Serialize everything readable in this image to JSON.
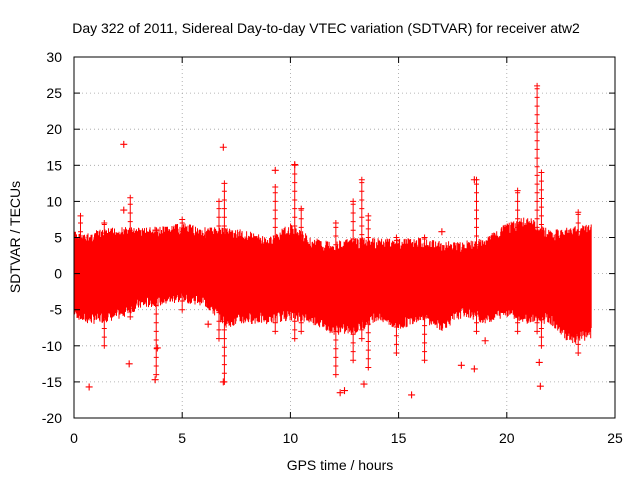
{
  "chart_data": {
    "type": "scatter",
    "title": "Day 322 of 2011, Sidereal Day-to-day VTEC variation (SDTVAR) for receiver atw2",
    "xlabel": "GPS time / hours",
    "ylabel": "SDTVAR / TECUs",
    "xlim": [
      0,
      25
    ],
    "ylim": [
      -20,
      30
    ],
    "xticks": [
      0,
      5,
      10,
      15,
      20,
      25
    ],
    "yticks": [
      -20,
      -15,
      -10,
      -5,
      0,
      5,
      10,
      15,
      20,
      25,
      30
    ],
    "grid": true,
    "marker": "plus",
    "color": "#ff0000",
    "x_data_range": [
      0,
      23.9
    ],
    "dense_band_note": "dense band mostly between -7 and 7 TECU",
    "envelope": [
      {
        "x": 0.0,
        "low": -6,
        "high": 6
      },
      {
        "x": 0.5,
        "low": -7,
        "high": 5.5
      },
      {
        "x": 1.0,
        "low": -7,
        "high": 6
      },
      {
        "x": 2.0,
        "low": -6.5,
        "high": 6.5
      },
      {
        "x": 3.0,
        "low": -5,
        "high": 6.5
      },
      {
        "x": 4.0,
        "low": -4.5,
        "high": 6.5
      },
      {
        "x": 5.0,
        "low": -4,
        "high": 7
      },
      {
        "x": 6.0,
        "low": -4.5,
        "high": 6.5
      },
      {
        "x": 7.0,
        "low": -7.5,
        "high": 6.5
      },
      {
        "x": 8.0,
        "low": -7,
        "high": 6
      },
      {
        "x": 9.0,
        "low": -7,
        "high": 5
      },
      {
        "x": 10.0,
        "low": -6.5,
        "high": 7
      },
      {
        "x": 11.0,
        "low": -7,
        "high": 5
      },
      {
        "x": 12.0,
        "low": -8.5,
        "high": 4.5
      },
      {
        "x": 13.0,
        "low": -8.5,
        "high": 5
      },
      {
        "x": 14.0,
        "low": -6.5,
        "high": 5
      },
      {
        "x": 15.0,
        "low": -8,
        "high": 5
      },
      {
        "x": 16.0,
        "low": -6.5,
        "high": 5
      },
      {
        "x": 17.0,
        "low": -8,
        "high": 4.5
      },
      {
        "x": 18.0,
        "low": -6,
        "high": 4.5
      },
      {
        "x": 19.0,
        "low": -7,
        "high": 5
      },
      {
        "x": 20.0,
        "low": -6,
        "high": 7
      },
      {
        "x": 21.0,
        "low": -7,
        "high": 8
      },
      {
        "x": 22.0,
        "low": -7,
        "high": 6
      },
      {
        "x": 23.0,
        "low": -10,
        "high": 6.5
      },
      {
        "x": 23.9,
        "low": -9,
        "high": 7
      }
    ],
    "spikes": [
      {
        "x": 0.3,
        "low": -5,
        "high": 8
      },
      {
        "x": 1.4,
        "low": -10,
        "high": 7
      },
      {
        "x": 2.6,
        "low": -6,
        "high": 10.5
      },
      {
        "x": 3.8,
        "low": -14,
        "high": 6
      },
      {
        "x": 5.0,
        "low": -5,
        "high": 7.5
      },
      {
        "x": 6.7,
        "low": -9,
        "high": 10
      },
      {
        "x": 6.95,
        "low": -15,
        "high": 12.5
      },
      {
        "x": 9.3,
        "low": -8,
        "high": 12
      },
      {
        "x": 10.2,
        "low": -9,
        "high": 15
      },
      {
        "x": 10.5,
        "low": -8,
        "high": 9
      },
      {
        "x": 12.1,
        "low": -14,
        "high": 7
      },
      {
        "x": 12.9,
        "low": -12,
        "high": 10
      },
      {
        "x": 13.3,
        "low": -9,
        "high": 13
      },
      {
        "x": 13.6,
        "low": -13,
        "high": 8
      },
      {
        "x": 14.9,
        "low": -11,
        "high": 5
      },
      {
        "x": 16.2,
        "low": -12,
        "high": 5
      },
      {
        "x": 18.6,
        "low": -8,
        "high": 13
      },
      {
        "x": 20.5,
        "low": -8,
        "high": 11.5
      },
      {
        "x": 21.4,
        "low": -8,
        "high": 26
      },
      {
        "x": 21.6,
        "low": -10,
        "high": 14
      },
      {
        "x": 23.3,
        "low": -11,
        "high": 8.5
      }
    ],
    "outliers": [
      {
        "x": 0.7,
        "y": -15.7
      },
      {
        "x": 2.3,
        "y": 17.9
      },
      {
        "x": 2.55,
        "y": -12.5
      },
      {
        "x": 3.75,
        "y": -14.7
      },
      {
        "x": 3.85,
        "y": -10.3
      },
      {
        "x": 2.3,
        "y": 8.8
      },
      {
        "x": 6.9,
        "y": 17.5
      },
      {
        "x": 6.9,
        "y": -15
      },
      {
        "x": 6.2,
        "y": -7
      },
      {
        "x": 9.3,
        "y": 14.3
      },
      {
        "x": 10.2,
        "y": 15.1
      },
      {
        "x": 12.3,
        "y": -16.5
      },
      {
        "x": 12.5,
        "y": -16.2
      },
      {
        "x": 13.4,
        "y": -15.3
      },
      {
        "x": 15.6,
        "y": -16.8
      },
      {
        "x": 17.9,
        "y": -12.7
      },
      {
        "x": 18.5,
        "y": -13.2
      },
      {
        "x": 18.5,
        "y": 13
      },
      {
        "x": 19.0,
        "y": -9.3
      },
      {
        "x": 21.5,
        "y": -12.3
      },
      {
        "x": 21.55,
        "y": -15.6
      },
      {
        "x": 17.0,
        "y": 5.8
      }
    ]
  }
}
